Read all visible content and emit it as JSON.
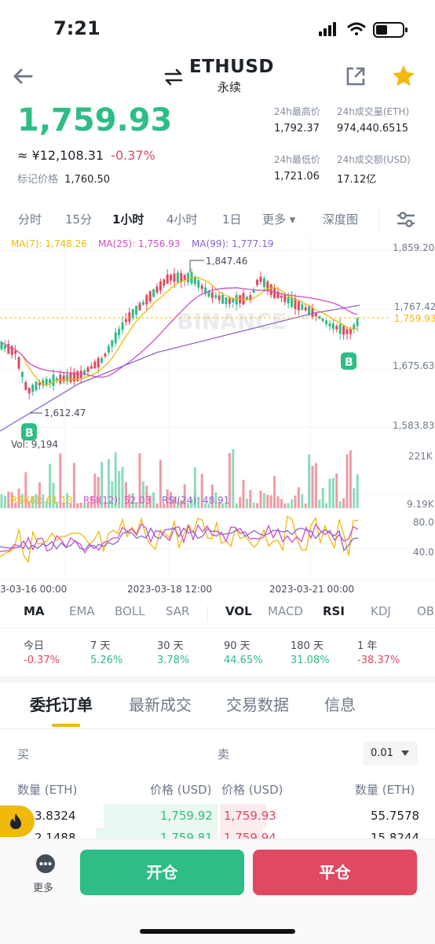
{
  "status": {
    "time": "7:21"
  },
  "header": {
    "symbol": "ETHUSD",
    "subtitle": "永续"
  },
  "price": {
    "last": "1,759.93",
    "cny": "≈ ¥12,108.31",
    "change": "-0.37%",
    "mark_label": "标记价格",
    "mark_value": "1,760.50"
  },
  "stats": [
    {
      "label": "24h最高价",
      "value": "1,792.37"
    },
    {
      "label": "24h成交量(ETH)",
      "value": "974,440.6515"
    },
    {
      "label": "24h最低价",
      "value": "1,721.06"
    },
    {
      "label": "24h成交额(USD)",
      "value": "17.12亿"
    }
  ],
  "timeframes": [
    "分时",
    "15分",
    "1小时",
    "4小时",
    "1日",
    "更多 ▾",
    "深度图"
  ],
  "chart": {
    "ma7": "MA(7): 1,748.26",
    "ma25": "MA(25): 1,756.93",
    "ma99": "MA(99): 1,777.19",
    "price_axis": [
      "1,859.20",
      "1,767.42",
      "1,759.93",
      "1,675.63",
      "1,583.83"
    ],
    "high_marker": "1,847.46",
    "low_marker": "1,612.47",
    "watermark": "BINANCE",
    "buy_marker": "B",
    "vol_label": "Vol: 9,194",
    "vol_axis": [
      "221K",
      "9.19K"
    ],
    "rsi6": "RSI(6): 61.13",
    "rsi12": "RSI(12): 52.03",
    "rsi24": "RSI(24): 48.91",
    "rsi_axis": [
      "80.0",
      "40.0"
    ],
    "time_axis": [
      "3-03-16 00:00",
      "2023-03-18 12:00",
      "2023-03-21 00:00"
    ],
    "colors": {
      "up": "#2ebd85",
      "down": "#e0495f",
      "ma7": "#f0b90b",
      "ma25": "#d04fc4",
      "ma99": "#8a63d2"
    }
  },
  "indicators_left": [
    "MA",
    "EMA",
    "BOLL",
    "SAR"
  ],
  "indicators_right": [
    "VOL",
    "MACD",
    "RSI",
    "KDJ",
    "OB"
  ],
  "performance": [
    {
      "label": "今日",
      "value": "-0.37%"
    },
    {
      "label": "7 天",
      "value": "5.26%"
    },
    {
      "label": "30 天",
      "value": "3.78%"
    },
    {
      "label": "90 天",
      "value": "44.65%"
    },
    {
      "label": "180 天",
      "value": "31.08%"
    },
    {
      "label": "1 年",
      "value": "-38.37%"
    }
  ],
  "order_tabs": [
    "委托订单",
    "最新成交",
    "交易数据",
    "信息"
  ],
  "orderbook": {
    "buy_label": "买",
    "sell_label": "卖",
    "precision": "0.01",
    "col_qty_left": "数量 (ETH)",
    "col_price_left": "价格 (USD)",
    "col_price_right": "价格 (USD)",
    "col_qty_right": "数量 (ETH)",
    "rows": [
      {
        "bid_qty": "3.8324",
        "bid_price": "1,759.92",
        "ask_price": "1,759.93",
        "ask_qty": "55.7578"
      },
      {
        "bid_qty": "2.1488",
        "bid_price": "1,759.81",
        "ask_price": "1,759.94",
        "ask_qty": "15.8244"
      }
    ]
  },
  "bottom": {
    "more": "更多",
    "open": "开仓",
    "close": "平仓"
  }
}
